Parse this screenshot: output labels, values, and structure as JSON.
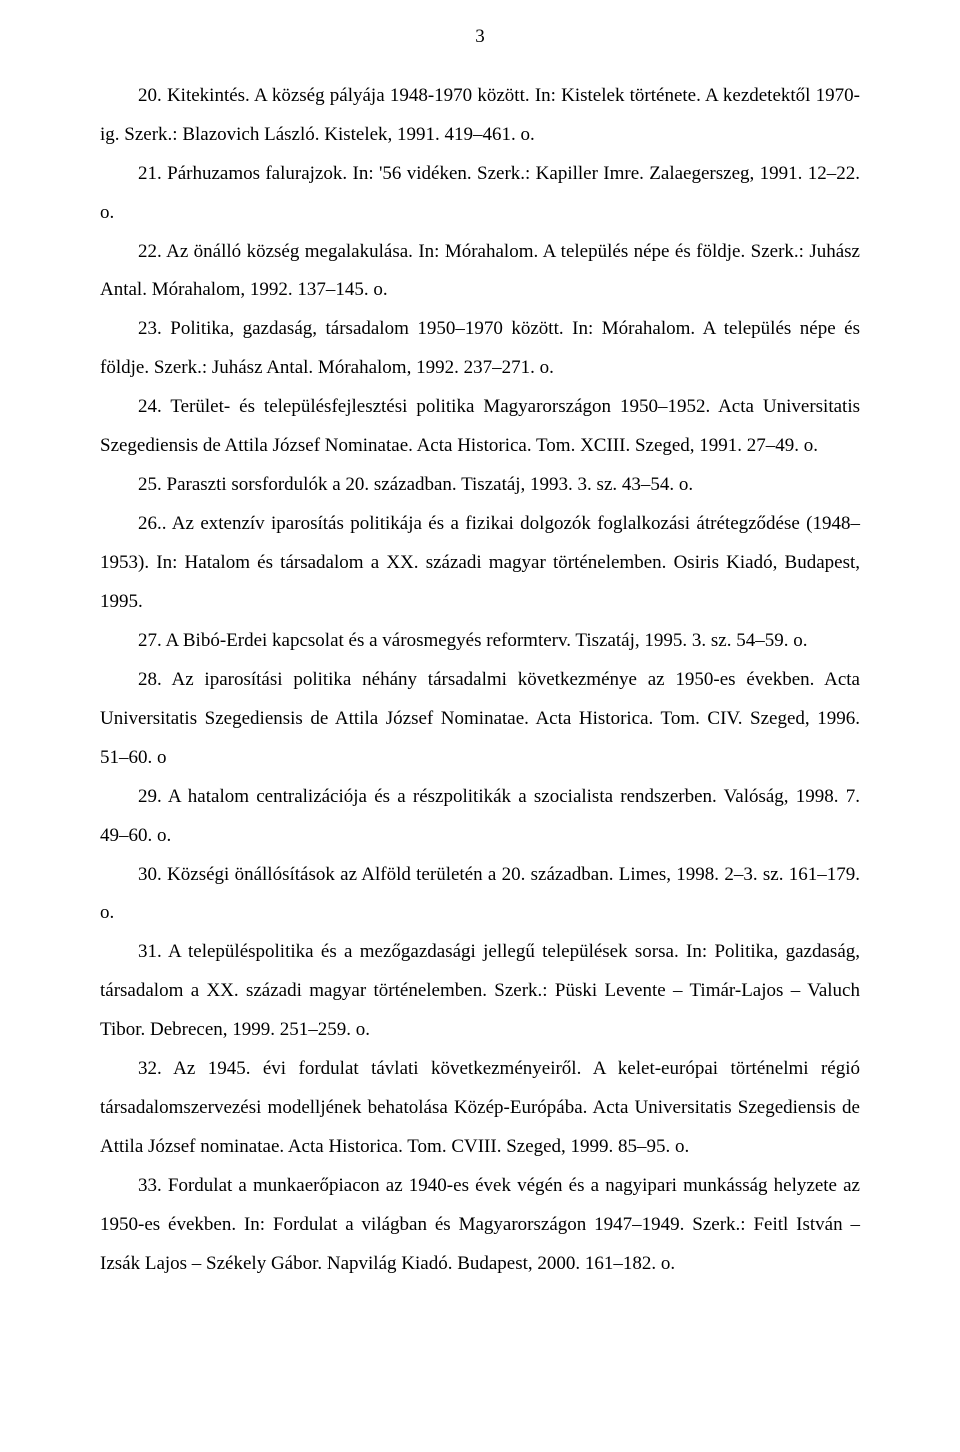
{
  "page_number": "3",
  "entries": [
    "20. Kitekintés. A község pályája 1948-1970 között. In: Kistelek története. A kezdetektől 1970-ig. Szerk.: Blazovich László. Kistelek, 1991. 419–461. o.",
    "21. Párhuzamos falurajzok. In: '56 vidéken. Szerk.: Kapiller Imre. Zalaegerszeg, 1991. 12–22. o.",
    "22. Az önálló község megalakulása. In: Mórahalom. A település népe és földje. Szerk.: Juhász Antal. Mórahalom, 1992. 137–145. o.",
    "23. Politika, gazdaság, társadalom 1950–1970 között. In: Mórahalom. A település népe és földje. Szerk.: Juhász Antal. Mórahalom, 1992. 237–271. o.",
    "24. Terület- és településfejlesztési politika Magyarországon 1950–1952. Acta Universitatis Szegediensis de Attila József Nominatae. Acta Historica. Tom. XCIII. Szeged, 1991. 27–49. o.",
    "25. Paraszti sorsfordulók a 20. században.  Tiszatáj, 1993. 3. sz. 43–54. o.",
    "26.. Az extenzív iparosítás politikája és a fizikai dolgozók foglalkozási átrétegződése (1948–1953).  In: Hatalom és társadalom a XX. századi magyar történelemben.  Osiris Kiadó, Budapest, 1995.",
    "27. A Bibó-Erdei kapcsolat és a városmegyés reformterv. Tiszatáj, 1995. 3. sz. 54–59. o.",
    "28.  Az iparosítási politika néhány társadalmi következménye az 1950-es években. Acta Universitatis Szegediensis de Attila József Nominatae. Acta Historica.  Tom. CIV. Szeged, 1996.  51–60. o",
    "29. A hatalom centralizációja és a részpolitikák a szocialista rendszerben. Valóság, 1998. 7. 49–60. o.",
    "30. Községi önállósítások az Alföld területén a 20. században. Limes, 1998. 2–3. sz. 161–179. o.",
    "31. A településpolitika és a mezőgazdasági jellegű települések sorsa. In: Politika, gazdaság, társadalom a XX. századi magyar történelemben. Szerk.: Püski Levente – Timár-Lajos – Valuch Tibor. Debrecen, 1999. 251–259. o.",
    "32. Az 1945. évi fordulat távlati következményeiről. A kelet-európai történelmi régió társadalomszervezési modelljének behatolása Közép-Európába. Acta Universitatis Szegediensis de Attila József nominatae. Acta Historica. Tom. CVIII. Szeged, 1999. 85–95. o.",
    "33. Fordulat a munkaerőpiacon az 1940-es évek végén és a nagyipari munkásság helyzete az 1950-es években.  In: Fordulat a világban és Magyarországon 1947–1949.  Szerk.: Feitl István – Izsák Lajos – Székely Gábor. Napvilág Kiadó. Budapest, 2000. 161–182. o."
  ]
}
